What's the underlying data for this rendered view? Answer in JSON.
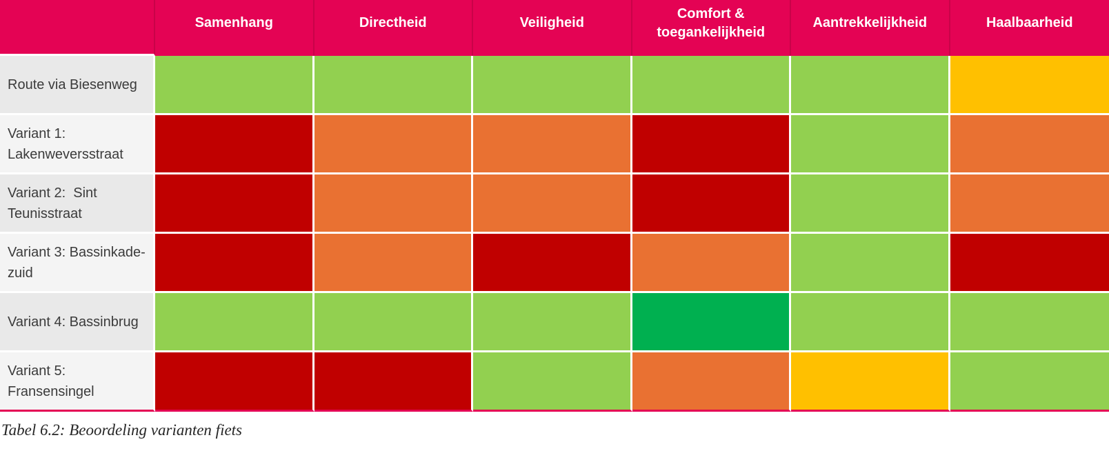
{
  "table": {
    "columns": [
      "Samenhang",
      "Directheid",
      "Veiligheid",
      "Comfort & toegankelijkheid",
      "Aantrekkelijkheid",
      "Haalbaarheid"
    ],
    "rows": [
      {
        "label": "Route via Biesenweg",
        "ratings": [
          "green",
          "green",
          "green",
          "green",
          "green",
          "yellow"
        ]
      },
      {
        "label": "Variant 1: Lakenweversstraat",
        "ratings": [
          "red",
          "orange",
          "orange",
          "red",
          "green",
          "orange"
        ]
      },
      {
        "label": "Variant 2:  Sint Teunisstraat",
        "ratings": [
          "red",
          "orange",
          "orange",
          "red",
          "green",
          "orange"
        ]
      },
      {
        "label": "Variant 3: Bassinkade-zuid",
        "ratings": [
          "red",
          "orange",
          "red",
          "orange",
          "green",
          "red"
        ]
      },
      {
        "label": "Variant 4: Bassinbrug",
        "ratings": [
          "green",
          "green",
          "green",
          "dark-green",
          "green",
          "green"
        ]
      },
      {
        "label": "Variant 5: Fransensingel",
        "ratings": [
          "red",
          "red",
          "green",
          "orange",
          "yellow",
          "green"
        ]
      }
    ]
  },
  "caption": "Tabel 6.2: Beoordeling varianten fiets",
  "colors": {
    "header_bg": "#E40354",
    "header_separator": "#C90349",
    "rating": {
      "green": "#92D050",
      "dark-green": "#00B050",
      "orange": "#E97132",
      "red": "#C00000",
      "yellow": "#FFC000"
    },
    "label_bg_odd": "#E9E9E9",
    "label_bg_even": "#F4F4F4"
  }
}
